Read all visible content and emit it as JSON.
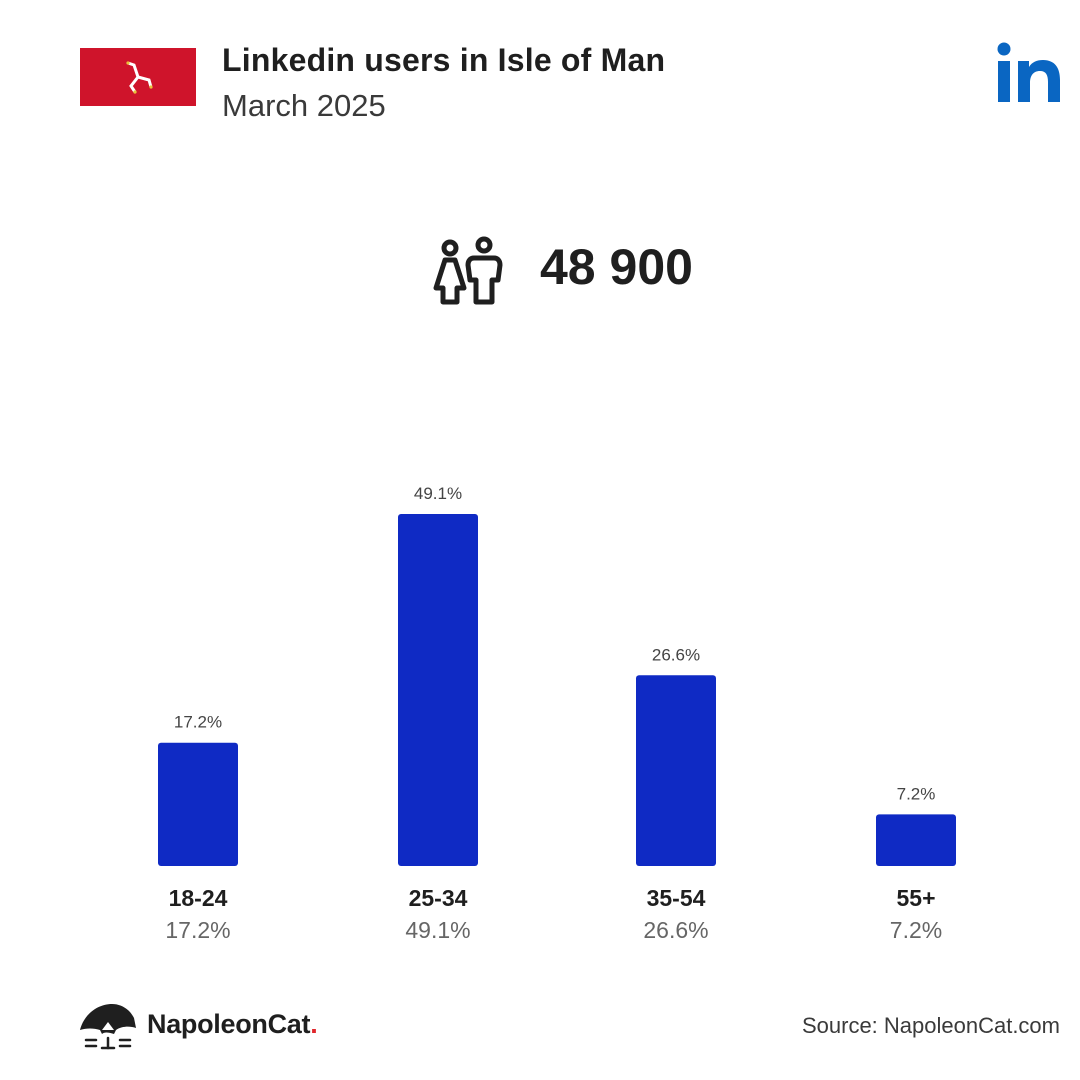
{
  "header": {
    "title": "Linkedin users in Isle of Man",
    "subtitle": "March 2025"
  },
  "summary": {
    "total_users": "48 900"
  },
  "icons": {
    "flag": "isle-of-man-flag-icon",
    "platform": "linkedin-logo",
    "users": "male-female-users-icon",
    "brand": "napoleoncat-logo-icon"
  },
  "colors": {
    "bar": "#0f2ac4",
    "flag_red": "#cf142b",
    "linkedin_blue": "#0a66c2",
    "brand_dot": "#e0262b"
  },
  "chart_data": {
    "type": "bar",
    "categories": [
      "18-24",
      "25-34",
      "35-54",
      "55+"
    ],
    "values": [
      17.2,
      49.1,
      26.6,
      7.2
    ],
    "value_labels": [
      "17.2%",
      "49.1%",
      "26.6%",
      "7.2%"
    ],
    "ylim": [
      0,
      49.1
    ],
    "grid": false,
    "legend": "none"
  },
  "footer": {
    "brand_name": "NapoleonCat",
    "brand_dot": ".",
    "source": "Source: NapoleonCat.com"
  }
}
